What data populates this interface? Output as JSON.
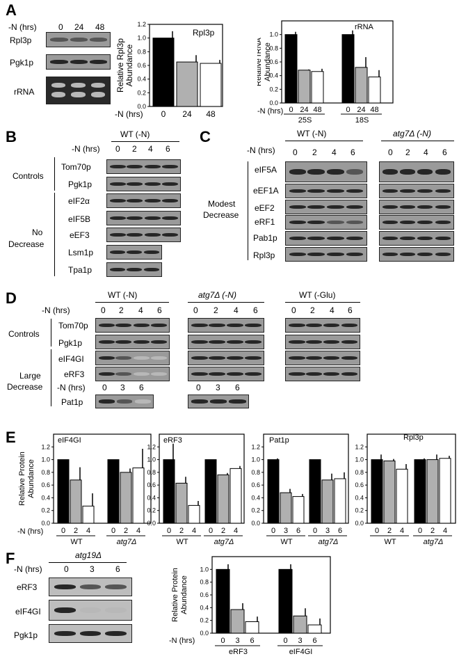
{
  "panel_letters": [
    "A",
    "B",
    "C",
    "D",
    "E",
    "F"
  ],
  "panelA": {
    "time_label": "-N (hrs)",
    "times": [
      "0",
      "24",
      "48"
    ],
    "blots": [
      "Rpl3p",
      "Pgk1p",
      "rRNA"
    ]
  },
  "panelB": {
    "condition": "WT (-N)",
    "time_label": "-N (hrs)",
    "times": [
      "0",
      "2",
      "4",
      "6"
    ],
    "group_controls": "Controls",
    "group_nodecrease": [
      "No",
      "Decrease"
    ],
    "proteins": [
      "Tom70p",
      "Pgk1p",
      "eIF2α",
      "eIF5B",
      "eEF3",
      "Lsm1p",
      "Tpa1p"
    ]
  },
  "panelC": {
    "conditions": [
      "WT (-N)",
      "atg7Δ (-N)"
    ],
    "time_label": "-N (hrs)",
    "times": [
      "0",
      "2",
      "4",
      "6"
    ],
    "group": [
      "Modest",
      "Decrease"
    ],
    "proteins": [
      "eIF5A",
      "eEF1A",
      "eEF2",
      "eRF1",
      "Pab1p",
      "Rpl3p"
    ]
  },
  "panelD": {
    "conditions": [
      "WT (-N)",
      "atg7Δ (-N)",
      "WT (-Glu)"
    ],
    "time_label": "-N (hrs)",
    "times": [
      "0",
      "2",
      "4",
      "6"
    ],
    "times_pat": [
      "0",
      "3",
      "6"
    ],
    "group_controls": "Controls",
    "group_large": [
      "Large",
      "Decrease"
    ],
    "proteins": [
      "Tom70p",
      "Pgk1p",
      "eIF4GI",
      "eRF3",
      "Pat1p"
    ]
  },
  "panelE": {
    "ylabel": "Relative Protein Abundance",
    "time_label": "-N (hrs)",
    "groups": [
      "WT",
      "atg7Δ"
    ]
  },
  "panelF": {
    "strain": "atg19Δ",
    "time_label": "-N (hrs)",
    "times": [
      "0",
      "3",
      "6"
    ],
    "blots": [
      "eRF3",
      "eIF4GI",
      "Pgk1p"
    ]
  },
  "chart_data": [
    {
      "id": "A-Rpl3p",
      "type": "bar",
      "title": "Rpl3p",
      "ylabel": "Relative Rpl3p Abundance",
      "xlabel": "-N (hrs)",
      "ylim": [
        0,
        1.2
      ],
      "categories": [
        "0",
        "24",
        "48"
      ],
      "values": [
        1.0,
        0.65,
        0.63
      ],
      "errors": [
        0.1,
        0.1,
        0.05
      ],
      "fills": [
        "#000000",
        "#b0b0b0",
        "#ffffff"
      ]
    },
    {
      "id": "A-rRNA",
      "type": "bar",
      "title": "rRNA",
      "ylabel": "Relative rRNA Abundance",
      "xlabel": "-N (hrs)",
      "ylim": [
        0,
        1.2
      ],
      "ticks": [
        0,
        0.2,
        0.4,
        0.6,
        0.8,
        1.0
      ],
      "groups": [
        {
          "name": "25S",
          "categories": [
            "0",
            "24",
            "48"
          ],
          "values": [
            1.0,
            0.48,
            0.46
          ],
          "errors": [
            0.04,
            0.01,
            0.04
          ]
        },
        {
          "name": "18S",
          "categories": [
            "0",
            "24",
            "48"
          ],
          "values": [
            1.0,
            0.52,
            0.38
          ],
          "errors": [
            0.06,
            0.15,
            0.1
          ]
        }
      ],
      "fills": [
        "#000000",
        "#b0b0b0",
        "#ffffff"
      ]
    },
    {
      "id": "E-eIF4GI",
      "type": "bar",
      "title": "eIF4GI",
      "ylim": [
        0,
        1.4
      ],
      "ticks": [
        0,
        0.2,
        0.4,
        0.6,
        0.8,
        1.0,
        1.2
      ],
      "groups": [
        {
          "name": "WT",
          "categories": [
            "0",
            "2",
            "4"
          ],
          "values": [
            1.0,
            0.68,
            0.27
          ],
          "errors": [
            0.0,
            0.2,
            0.2
          ]
        },
        {
          "name": "atg7Δ",
          "categories": [
            "0",
            "2",
            "4"
          ],
          "values": [
            1.0,
            0.8,
            0.87
          ],
          "errors": [
            0.0,
            0.06,
            0.3
          ]
        }
      ],
      "fills": [
        "#000000",
        "#b0b0b0",
        "#ffffff"
      ]
    },
    {
      "id": "E-eRF3",
      "type": "bar",
      "title": "eRF3",
      "ylim": [
        0,
        1.4
      ],
      "ticks": [
        0,
        0.2,
        0.4,
        0.6,
        0.8,
        1.0,
        1.2
      ],
      "groups": [
        {
          "name": "WT",
          "categories": [
            "0",
            "2",
            "4"
          ],
          "values": [
            1.0,
            0.63,
            0.28
          ],
          "errors": [
            0.25,
            0.1,
            0.07
          ]
        },
        {
          "name": "atg7Δ",
          "categories": [
            "0",
            "2",
            "4"
          ],
          "values": [
            1.0,
            0.76,
            0.86
          ],
          "errors": [
            0.0,
            0.03,
            0.04
          ]
        }
      ],
      "fills": [
        "#000000",
        "#b0b0b0",
        "#ffffff"
      ]
    },
    {
      "id": "E-Pat1p",
      "type": "bar",
      "title": "Pat1p",
      "ylim": [
        0,
        1.4
      ],
      "ticks": [
        0,
        0.2,
        0.4,
        0.6,
        0.8,
        1.0,
        1.2
      ],
      "groups": [
        {
          "name": "WT",
          "categories": [
            "0",
            "3",
            "6"
          ],
          "values": [
            1.0,
            0.48,
            0.42
          ],
          "errors": [
            0.02,
            0.06,
            0.04
          ]
        },
        {
          "name": "atg7Δ",
          "categories": [
            "0",
            "3",
            "6"
          ],
          "values": [
            1.0,
            0.68,
            0.7
          ],
          "errors": [
            0.0,
            0.1,
            0.1
          ]
        }
      ],
      "fills": [
        "#000000",
        "#b0b0b0",
        "#ffffff"
      ]
    },
    {
      "id": "E-Rpl3p",
      "type": "bar",
      "title": "Rpl3p",
      "ylim": [
        0,
        1.4
      ],
      "ticks": [
        0,
        0.2,
        0.4,
        0.6,
        0.8,
        1.0,
        1.2
      ],
      "groups": [
        {
          "name": "WT",
          "categories": [
            "0",
            "2",
            "4"
          ],
          "values": [
            1.0,
            0.98,
            0.85
          ],
          "errors": [
            0.08,
            0.03,
            0.08
          ]
        },
        {
          "name": "atg7Δ",
          "categories": [
            "0",
            "2",
            "4"
          ],
          "values": [
            1.0,
            1.0,
            1.02
          ],
          "errors": [
            0.02,
            0.08,
            0.04
          ]
        }
      ],
      "fills": [
        "#000000",
        "#b0b0b0",
        "#ffffff"
      ]
    },
    {
      "id": "F",
      "type": "bar",
      "ylabel": "Relative Protein Abundance",
      "xlabel": "-N (hrs)",
      "ylim": [
        0,
        1.2
      ],
      "ticks": [
        0,
        0.2,
        0.4,
        0.6,
        0.8,
        1.0
      ],
      "groups": [
        {
          "name": "eRF3",
          "categories": [
            "0",
            "3",
            "6"
          ],
          "values": [
            1.0,
            0.37,
            0.18
          ],
          "errors": [
            0.08,
            0.1,
            0.08
          ]
        },
        {
          "name": "eIF4GI",
          "categories": [
            "0",
            "3",
            "6"
          ],
          "values": [
            1.0,
            0.27,
            0.13
          ],
          "errors": [
            0.08,
            0.12,
            0.1
          ]
        }
      ],
      "fills": [
        "#000000",
        "#b0b0b0",
        "#ffffff"
      ]
    }
  ]
}
